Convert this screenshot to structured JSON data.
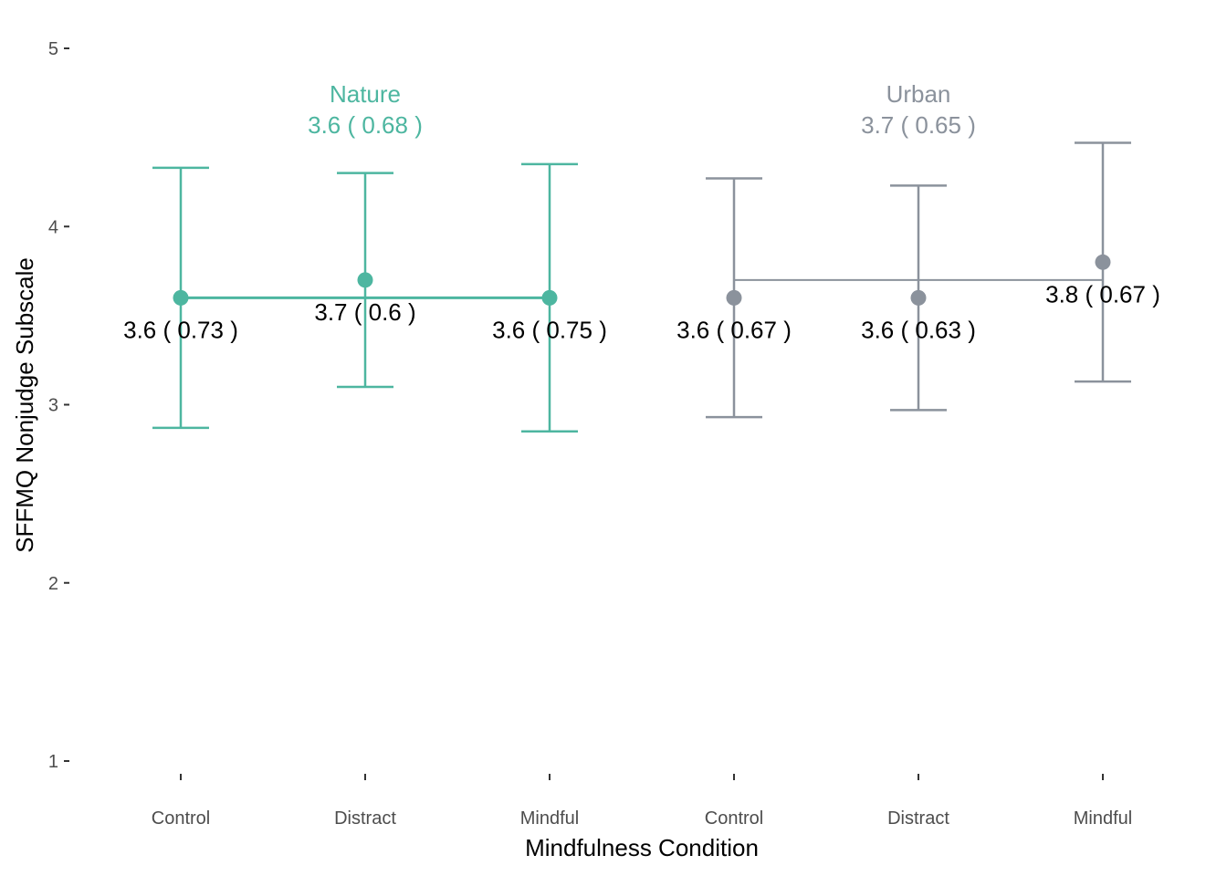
{
  "chart_data": {
    "type": "scatter",
    "xlabel": "Mindfulness Condition",
    "ylabel": "SFFMQ Nonjudge Subscale",
    "ylim": [
      1,
      5
    ],
    "yticks": [
      "1",
      "2",
      "3",
      "4",
      "5"
    ],
    "grid": false,
    "categories": [
      "Control",
      "Distract",
      "Mindful",
      "Control",
      "Distract",
      "Mindful"
    ],
    "series": [
      {
        "name": "Nature",
        "summary": "3.6  ( 0.68 )",
        "group_mean": 3.6,
        "color": "#4db6a0",
        "points": [
          {
            "x": "Control",
            "mean": 3.6,
            "lower": 2.87,
            "upper": 4.33,
            "label": "3.6  ( 0.73 )"
          },
          {
            "x": "Distract",
            "mean": 3.7,
            "lower": 3.1,
            "upper": 4.3,
            "label": "3.7  ( 0.6 )"
          },
          {
            "x": "Mindful",
            "mean": 3.6,
            "lower": 2.85,
            "upper": 4.35,
            "label": "3.6  ( 0.75 )"
          }
        ]
      },
      {
        "name": "Urban",
        "summary": "3.7  ( 0.65 )",
        "group_mean": 3.7,
        "color": "#8b929c",
        "points": [
          {
            "x": "Control",
            "mean": 3.6,
            "lower": 2.93,
            "upper": 4.27,
            "label": "3.6  ( 0.67 )"
          },
          {
            "x": "Distract",
            "mean": 3.6,
            "lower": 2.97,
            "upper": 4.23,
            "label": "3.6  ( 0.63 )"
          },
          {
            "x": "Mindful",
            "mean": 3.8,
            "lower": 3.13,
            "upper": 4.47,
            "label": "3.8  ( 0.67 )"
          }
        ]
      }
    ]
  }
}
